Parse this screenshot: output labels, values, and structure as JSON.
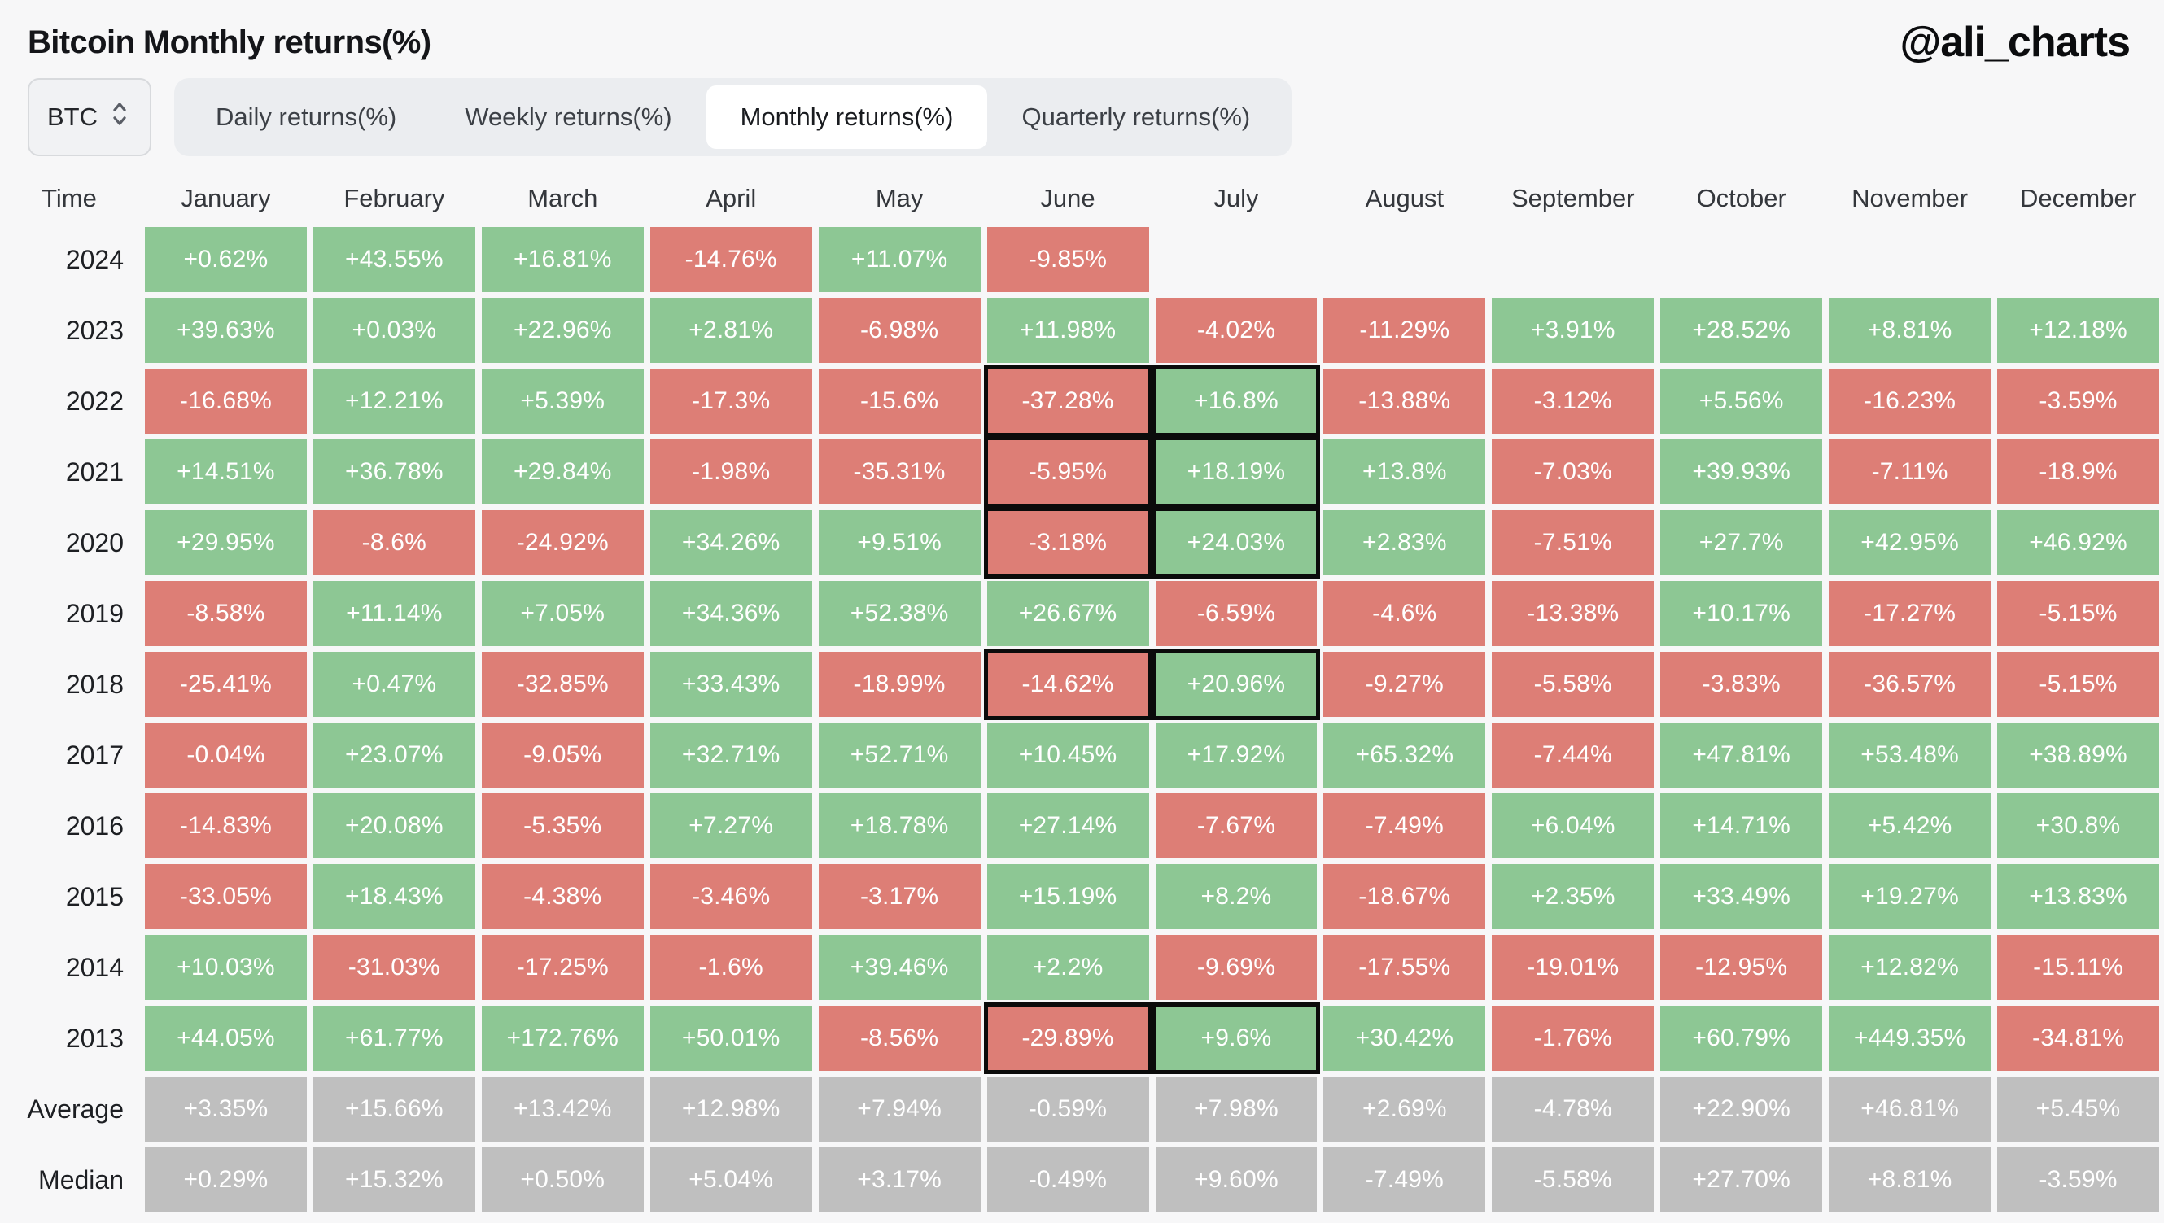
{
  "title": "Bitcoin Monthly returns(%)",
  "watermark": "@ali_charts",
  "controls": {
    "asset_selector": {
      "value": "BTC",
      "icon": "updown-chevron-icon"
    },
    "tabs": [
      {
        "label": "Daily returns(%)",
        "active": false
      },
      {
        "label": "Weekly returns(%)",
        "active": false
      },
      {
        "label": "Monthly returns(%)",
        "active": true
      },
      {
        "label": "Quarterly returns(%)",
        "active": false
      }
    ]
  },
  "chart_data": {
    "type": "heatmap",
    "title": "Bitcoin Monthly returns(%)",
    "row_header": "Time",
    "columns": [
      "January",
      "February",
      "March",
      "April",
      "May",
      "June",
      "July",
      "August",
      "September",
      "October",
      "November",
      "December"
    ],
    "rows": [
      {
        "label": "2024",
        "values": [
          "+0.62%",
          "+43.55%",
          "+16.81%",
          "-14.76%",
          "+11.07%",
          "-9.85%",
          null,
          null,
          null,
          null,
          null,
          null
        ]
      },
      {
        "label": "2023",
        "values": [
          "+39.63%",
          "+0.03%",
          "+22.96%",
          "+2.81%",
          "-6.98%",
          "+11.98%",
          "-4.02%",
          "-11.29%",
          "+3.91%",
          "+28.52%",
          "+8.81%",
          "+12.18%"
        ]
      },
      {
        "label": "2022",
        "values": [
          "-16.68%",
          "+12.21%",
          "+5.39%",
          "-17.3%",
          "-15.6%",
          "-37.28%",
          "+16.8%",
          "-13.88%",
          "-3.12%",
          "+5.56%",
          "-16.23%",
          "-3.59%"
        ]
      },
      {
        "label": "2021",
        "values": [
          "+14.51%",
          "+36.78%",
          "+29.84%",
          "-1.98%",
          "-35.31%",
          "-5.95%",
          "+18.19%",
          "+13.8%",
          "-7.03%",
          "+39.93%",
          "-7.11%",
          "-18.9%"
        ]
      },
      {
        "label": "2020",
        "values": [
          "+29.95%",
          "-8.6%",
          "-24.92%",
          "+34.26%",
          "+9.51%",
          "-3.18%",
          "+24.03%",
          "+2.83%",
          "-7.51%",
          "+27.7%",
          "+42.95%",
          "+46.92%"
        ]
      },
      {
        "label": "2019",
        "values": [
          "-8.58%",
          "+11.14%",
          "+7.05%",
          "+34.36%",
          "+52.38%",
          "+26.67%",
          "-6.59%",
          "-4.6%",
          "-13.38%",
          "+10.17%",
          "-17.27%",
          "-5.15%"
        ]
      },
      {
        "label": "2018",
        "values": [
          "-25.41%",
          "+0.47%",
          "-32.85%",
          "+33.43%",
          "-18.99%",
          "-14.62%",
          "+20.96%",
          "-9.27%",
          "-5.58%",
          "-3.83%",
          "-36.57%",
          "-5.15%"
        ]
      },
      {
        "label": "2017",
        "values": [
          "-0.04%",
          "+23.07%",
          "-9.05%",
          "+32.71%",
          "+52.71%",
          "+10.45%",
          "+17.92%",
          "+65.32%",
          "-7.44%",
          "+47.81%",
          "+53.48%",
          "+38.89%"
        ]
      },
      {
        "label": "2016",
        "values": [
          "-14.83%",
          "+20.08%",
          "-5.35%",
          "+7.27%",
          "+18.78%",
          "+27.14%",
          "-7.67%",
          "-7.49%",
          "+6.04%",
          "+14.71%",
          "+5.42%",
          "+30.8%"
        ]
      },
      {
        "label": "2015",
        "values": [
          "-33.05%",
          "+18.43%",
          "-4.38%",
          "-3.46%",
          "-3.17%",
          "+15.19%",
          "+8.2%",
          "-18.67%",
          "+2.35%",
          "+33.49%",
          "+19.27%",
          "+13.83%"
        ]
      },
      {
        "label": "2014",
        "values": [
          "+10.03%",
          "-31.03%",
          "-17.25%",
          "-1.6%",
          "+39.46%",
          "+2.2%",
          "-9.69%",
          "-17.55%",
          "-19.01%",
          "-12.95%",
          "+12.82%",
          "-15.11%"
        ]
      },
      {
        "label": "2013",
        "values": [
          "+44.05%",
          "+61.77%",
          "+172.76%",
          "+50.01%",
          "-8.56%",
          "-29.89%",
          "+9.6%",
          "+30.42%",
          "-1.76%",
          "+60.79%",
          "+449.35%",
          "-34.81%"
        ]
      },
      {
        "label": "Average",
        "style": "gray",
        "values": [
          "+3.35%",
          "+15.66%",
          "+13.42%",
          "+12.98%",
          "+7.94%",
          "-0.59%",
          "+7.98%",
          "+2.69%",
          "-4.78%",
          "+22.90%",
          "+46.81%",
          "+5.45%"
        ]
      },
      {
        "label": "Median",
        "style": "gray",
        "values": [
          "+0.29%",
          "+15.32%",
          "+0.50%",
          "+5.04%",
          "+3.17%",
          "-0.49%",
          "+9.60%",
          "-7.49%",
          "-5.58%",
          "+27.70%",
          "+8.81%",
          "-3.59%"
        ]
      }
    ],
    "highlighted_cells": [
      {
        "row": "2022",
        "months": [
          "June",
          "July"
        ]
      },
      {
        "row": "2021",
        "months": [
          "June",
          "July"
        ]
      },
      {
        "row": "2020",
        "months": [
          "June",
          "July"
        ]
      },
      {
        "row": "2018",
        "months": [
          "June",
          "July"
        ]
      },
      {
        "row": "2013",
        "months": [
          "June",
          "July"
        ]
      }
    ],
    "colors": {
      "positive": "#8dc794",
      "negative": "#dd7e76",
      "neutral": "#bfbfbf",
      "highlight_border": "#0b0b0b",
      "background": "#f7f7f8"
    },
    "legend_position": "none",
    "grid": false
  }
}
